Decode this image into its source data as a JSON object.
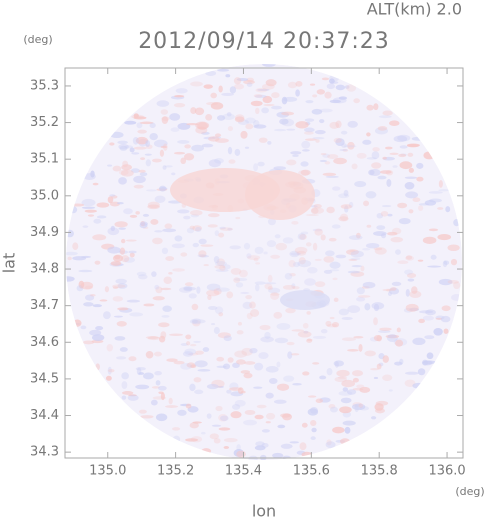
{
  "chart_data": {
    "type": "radar-field",
    "title": "2012/09/14 20:37:23",
    "subtitle": "ALT(km) 2.0",
    "x_label": "lon",
    "y_label": "lat",
    "x_unit": "(deg)",
    "y_unit": "(deg)",
    "xlim": [
      134.874,
      136.047
    ],
    "ylim": [
      34.284,
      35.349
    ],
    "xticks": [
      {
        "value": 135,
        "label": "135.0"
      },
      135.2,
      135.4,
      135.6,
      135.8,
      {
        "value": 136,
        "label": "136.0"
      }
    ],
    "yticks": [
      34.3,
      34.4,
      34.5,
      34.6,
      34.7,
      34.8,
      34.9,
      {
        "value": 35,
        "label": "35.0"
      },
      35.1,
      35.2,
      35.3
    ],
    "grid": false
  }
}
